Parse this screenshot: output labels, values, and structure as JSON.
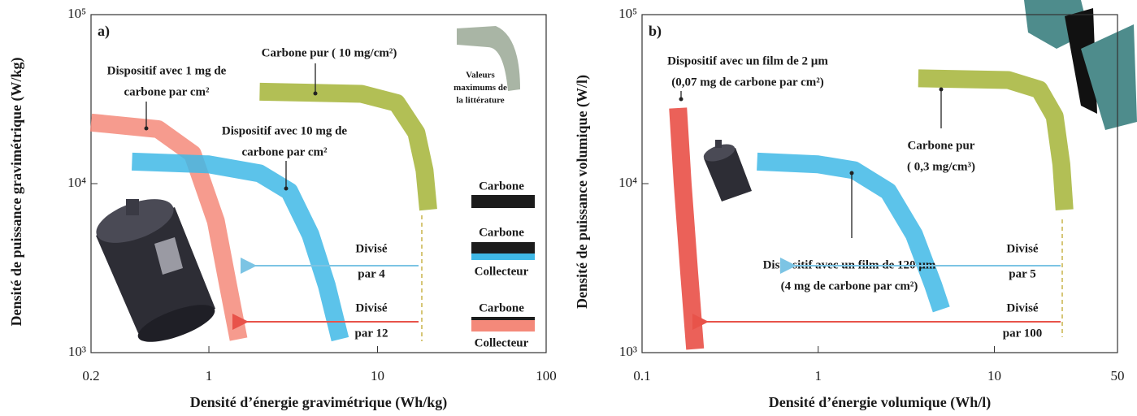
{
  "chart_data": [
    {
      "type": "line",
      "panel_label": "a)",
      "x_label": "Densité d’énergie gravimétrique (Wh/kg)",
      "y_label": "Densité de puissance  gravimétrique (W/kg)",
      "xscale": "log",
      "yscale": "log",
      "xlim": [
        0.2,
        100
      ],
      "ylim": [
        1000,
        100000
      ],
      "xticks": [
        0.2,
        1,
        10,
        100
      ],
      "yticks": [
        {
          "value": 1000,
          "label": "10³"
        },
        {
          "value": 10000,
          "label": "10⁴"
        },
        {
          "value": 100000,
          "label": "10⁵"
        }
      ],
      "series": [
        {
          "name": [
            "Dispositif avec 1 mg de",
            "carbone par cm²"
          ],
          "color": "#f4897a",
          "x": [
            0.2,
            0.5,
            0.8,
            1.1,
            1.3,
            1.5
          ],
          "values": [
            23000,
            21000,
            15000,
            6000,
            2500,
            1200
          ]
        },
        {
          "name": [
            "Dispositif avec 10 mg de",
            "carbone par cm²"
          ],
          "color": "#3fb8e6",
          "x": [
            0.35,
            1,
            2,
            3,
            4,
            5,
            6
          ],
          "values": [
            13500,
            13000,
            11500,
            9000,
            5000,
            2500,
            1200
          ]
        },
        {
          "name": [
            "Carbone pur ( 10 mg/cm²)"
          ],
          "color": "#a4b437",
          "x": [
            2,
            8,
            13,
            17,
            19,
            20
          ],
          "values": [
            35000,
            34000,
            30000,
            20000,
            12000,
            7000
          ]
        }
      ],
      "divisions": [
        {
          "lines": [
            "Divisé",
            "par 4"
          ],
          "color": "#7cc4e4"
        },
        {
          "lines": [
            "Divisé",
            "par 12"
          ],
          "color": "#e8534a"
        }
      ],
      "layers": [
        {
          "labels": [
            "Carbone"
          ]
        },
        {
          "labels": [
            "Carbone",
            "Collecteur"
          ]
        },
        {
          "labels": [
            "Carbone",
            "Collecteur"
          ]
        }
      ],
      "inset_note": [
        "Valeurs",
        "maximums de",
        "la littérature"
      ]
    },
    {
      "type": "line",
      "panel_label": "b)",
      "x_label": "Densité d’énergie volumique (Wh/l)",
      "y_label": "Densité de puissance  volumique (W/l)",
      "xscale": "log",
      "yscale": "log",
      "xlim": [
        0.1,
        50
      ],
      "ylim": [
        1000,
        100000
      ],
      "xticks": [
        0.1,
        1,
        10,
        50
      ],
      "yticks": [
        {
          "value": 1000,
          "label": "10³"
        },
        {
          "value": 10000,
          "label": "10⁴"
        },
        {
          "value": 100000,
          "label": "10⁵"
        }
      ],
      "series": [
        {
          "name": [
            "Dispositif avec un film de 2 µm",
            "(0,07 mg de carbone par cm²)"
          ],
          "color": "#e8453c",
          "x": [
            0.16,
            0.17,
            0.185,
            0.2
          ],
          "values": [
            28000,
            10000,
            3000,
            1050
          ]
        },
        {
          "name": [
            "Dispositif avec un film de 120 µm",
            "(4 mg de carbone par cm²)"
          ],
          "color": "#3fb8e6",
          "x": [
            0.45,
            1,
            1.6,
            2.5,
            3.5,
            4.5,
            5
          ],
          "values": [
            13500,
            13000,
            12000,
            9000,
            5000,
            2500,
            1800
          ]
        },
        {
          "name": [
            "Carbone pur",
            "( 0,3 mg/cm³)"
          ],
          "color": "#a4b437",
          "x": [
            3.7,
            12,
            18,
            22,
            24,
            25
          ],
          "values": [
            42000,
            41000,
            36000,
            25000,
            13000,
            7000
          ]
        }
      ],
      "divisions": [
        {
          "lines": [
            "Divisé",
            "par 5"
          ],
          "color": "#7cc4e4"
        },
        {
          "lines": [
            "Divisé",
            "par 100"
          ],
          "color": "#e8534a"
        }
      ]
    }
  ]
}
